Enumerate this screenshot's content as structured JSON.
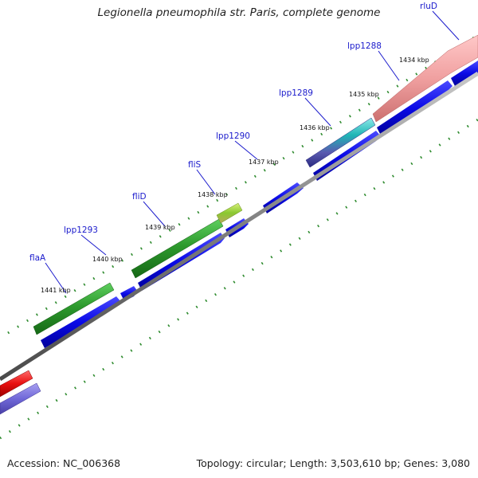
{
  "title": "Legionella pneumophila str. Paris, complete genome",
  "footer": {
    "accession": "Accession: NC_006368",
    "summary": "Topology: circular; Length: 3,503,610 bp; Genes: 3,080"
  },
  "colors": {
    "backbone": "#7f7f7f",
    "tick_marks": "#2e8b2e",
    "label_lines": "#1a1acc",
    "cds_arrows": "#0a0ae6",
    "gene_green": "#2d9a2d",
    "gene_pink": "#f0a0a0",
    "gene_red": "#e81010",
    "gene_teal": "#1fb5b5"
  },
  "scale_ticks": [
    "1441 kbp",
    "1440 kbp",
    "1439 kbp",
    "1438 kbp",
    "1437 kbp",
    "1436 kbp",
    "1435 kbp",
    "1434 kbp"
  ],
  "genes": [
    "flaA",
    "lpp1293",
    "fliD",
    "fliS",
    "lpp1290",
    "lpp1289",
    "lpp1288",
    "rluD"
  ]
}
